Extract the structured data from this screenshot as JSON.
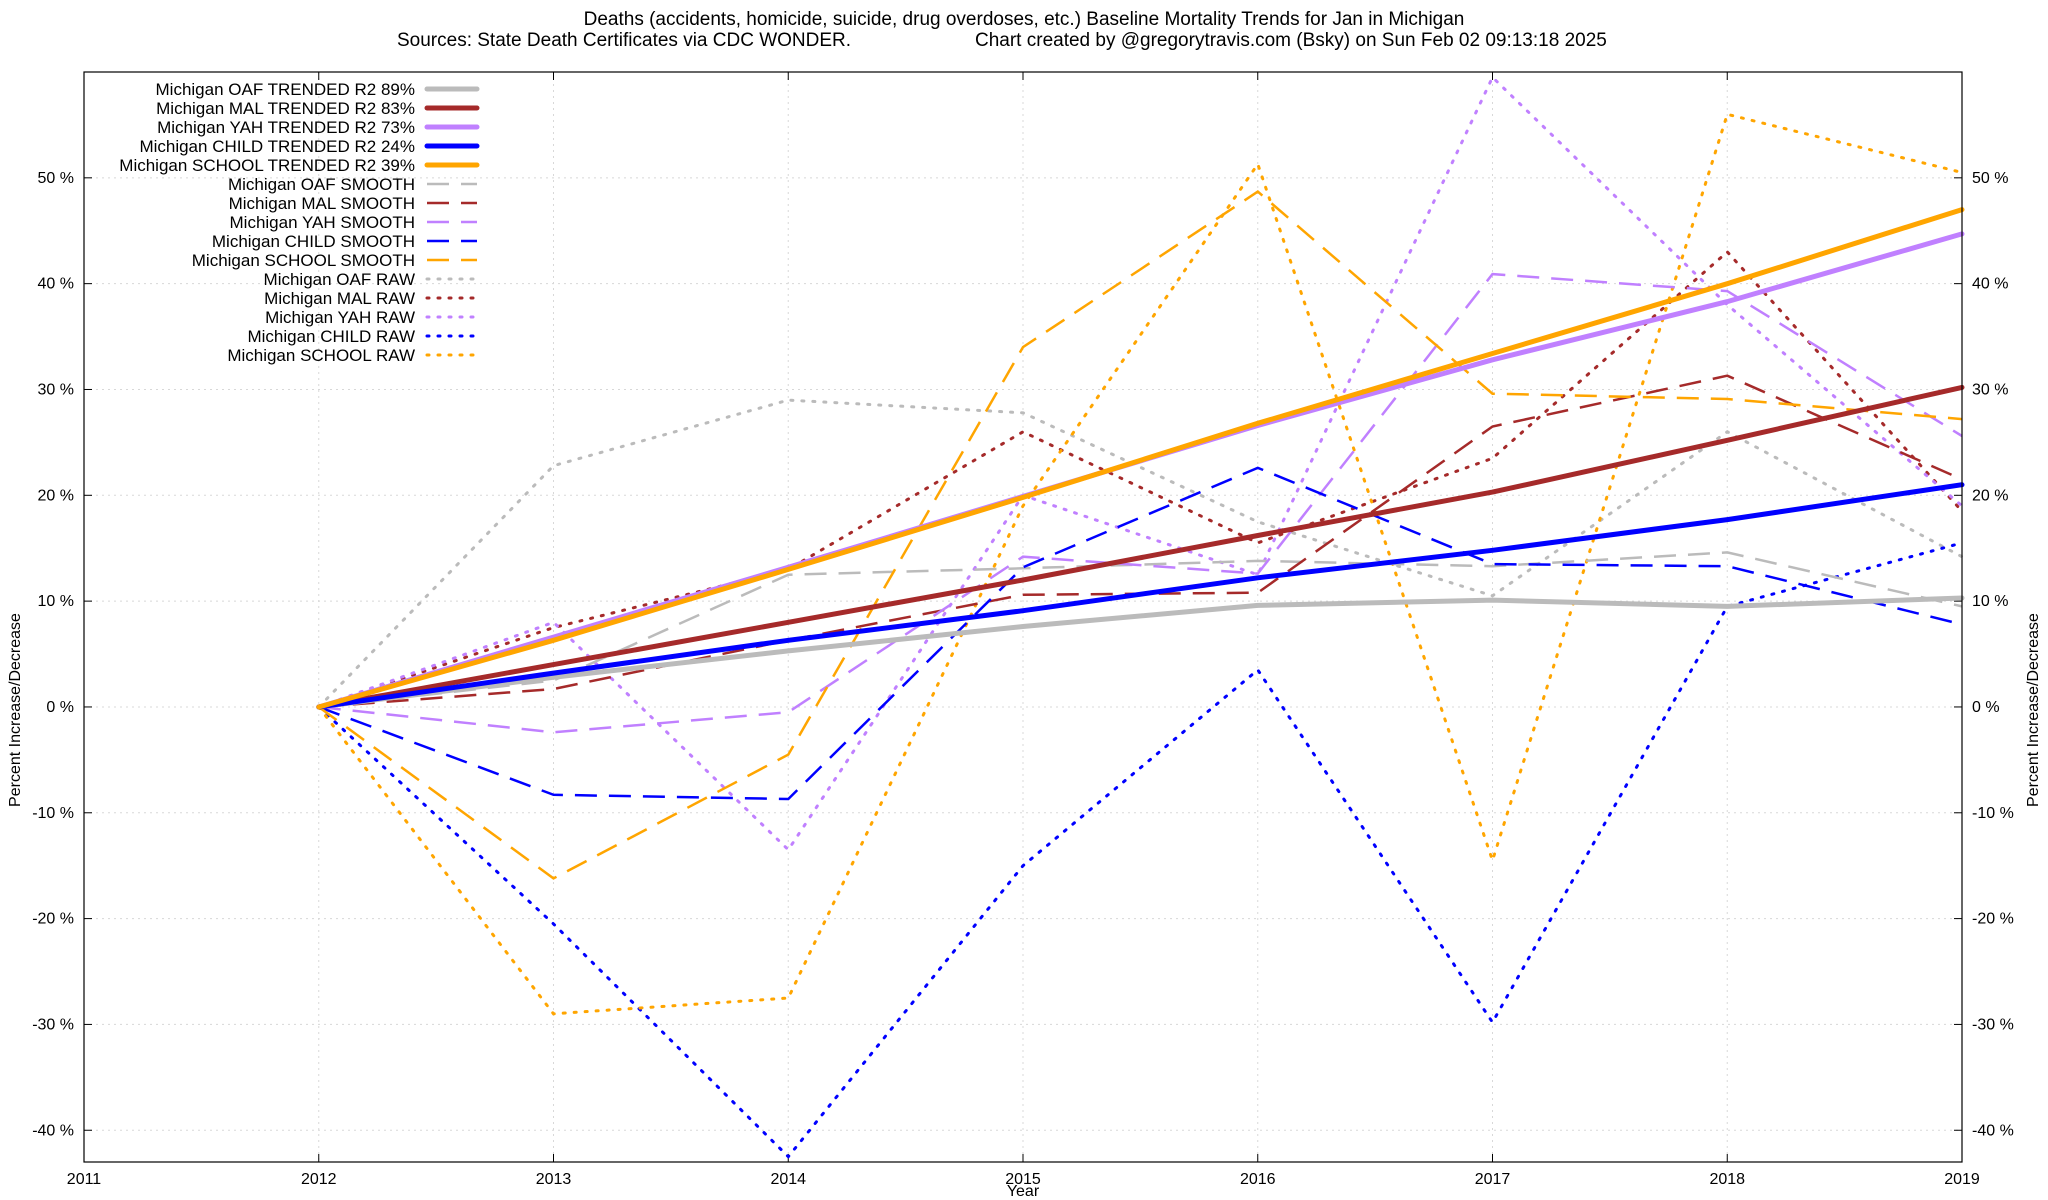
{
  "title_line1": "Deaths (accidents, homicide, suicide, drug overdoses, etc.)  Baseline Mortality Trends for Jan in Michigan",
  "title_line2_left": "Sources: State Death Certificates via CDC WONDER.",
  "title_line2_right": "Chart created by @gregorytravis.com (Bsky) on Sun Feb 02 09:13:18 2025",
  "chart_data": {
    "type": "line",
    "title": "Deaths (accidents, homicide, suicide, drug overdoses, etc.)  Baseline Mortality Trends for Jan in Michigan",
    "subtitle": "Sources: State Death Certificates via CDC WONDER.  Chart created by @gregorytravis.com (Bsky) on Sun Feb 02 09:13:18 2025",
    "xlabel": "Year",
    "ylabel": "Percent Increase/Decrease",
    "y2label": "Percent Increase/Decrease",
    "xlim": [
      2011,
      2019
    ],
    "ylim": [
      -43,
      60
    ],
    "x_ticks": [
      "2011",
      "2012",
      "2013",
      "2014",
      "2015",
      "2016",
      "2017",
      "2018",
      "2019"
    ],
    "y_ticks": [
      "-40 %",
      "-30 %",
      "-20 %",
      "-10 %",
      "0 %",
      "10 %",
      "20 %",
      "30 %",
      "40 %",
      "50 %"
    ],
    "y_tick_values": [
      -40,
      -30,
      -20,
      -10,
      0,
      10,
      20,
      30,
      40,
      50
    ],
    "grid": true,
    "legend_position": "top-left",
    "x": [
      2012,
      2013,
      2014,
      2015,
      2016,
      2017,
      2018,
      2019
    ],
    "series": [
      {
        "name": "Michigan OAF TRENDED R2  89%",
        "style": "solid",
        "color": "#bbbbbb",
        "values": [
          0,
          2.8,
          5.3,
          7.6,
          9.6,
          10.1,
          9.5,
          10.3
        ]
      },
      {
        "name": "Michigan MAL TRENDED R2  83%",
        "style": "solid",
        "color": "#a52a2a",
        "values": [
          0,
          4.0,
          8.0,
          12.0,
          16.2,
          20.3,
          25.2,
          30.2
        ]
      },
      {
        "name": "Michigan YAH TRENDED R2  73%",
        "style": "solid",
        "color": "#c080ff",
        "values": [
          0,
          6.6,
          13.2,
          19.9,
          26.6,
          32.8,
          38.3,
          44.7
        ]
      },
      {
        "name": "Michigan CHILD TRENDED R2  24%",
        "style": "solid",
        "color": "#0000ff",
        "values": [
          0,
          3.2,
          6.3,
          9.1,
          12.2,
          14.8,
          17.7,
          21.0
        ]
      },
      {
        "name": "Michigan SCHOOL TRENDED R2  39%",
        "style": "solid",
        "color": "#ffa500",
        "values": [
          0,
          6.3,
          13.0,
          19.8,
          26.8,
          33.4,
          40.0,
          47.0
        ]
      },
      {
        "name": "Michigan OAF SMOOTH",
        "style": "dashed",
        "color": "#bbbbbb",
        "values": [
          0,
          2.5,
          12.5,
          13.1,
          13.8,
          13.3,
          14.6,
          9.5
        ]
      },
      {
        "name": "Michigan MAL SMOOTH",
        "style": "dashed",
        "color": "#a52a2a",
        "values": [
          0,
          1.7,
          6.3,
          10.6,
          10.8,
          26.5,
          31.3,
          21.5
        ]
      },
      {
        "name": "Michigan YAH SMOOTH",
        "style": "dashed",
        "color": "#c080ff",
        "values": [
          0,
          -2.4,
          -0.5,
          14.2,
          12.6,
          40.9,
          39.3,
          25.6
        ]
      },
      {
        "name": "Michigan CHILD SMOOTH",
        "style": "dashed",
        "color": "#0000ff",
        "values": [
          0,
          -8.3,
          -8.7,
          13.2,
          22.6,
          13.5,
          13.3,
          7.8
        ]
      },
      {
        "name": "Michigan SCHOOL SMOOTH",
        "style": "dashed",
        "color": "#ffa500",
        "values": [
          0,
          -16.2,
          -4.5,
          34.0,
          48.7,
          29.6,
          29.1,
          27.2
        ]
      },
      {
        "name": "Michigan OAF RAW",
        "style": "dotted",
        "color": "#bbbbbb",
        "values": [
          0,
          22.8,
          29.0,
          27.8,
          17.5,
          10.5,
          26.0,
          14.2
        ]
      },
      {
        "name": "Michigan MAL RAW",
        "style": "dotted",
        "color": "#a52a2a",
        "values": [
          0,
          7.5,
          13.0,
          26.0,
          15.5,
          23.5,
          43.0,
          18.5
        ]
      },
      {
        "name": "Michigan YAH RAW",
        "style": "dotted",
        "color": "#c080ff",
        "values": [
          0,
          8.0,
          -13.5,
          20.0,
          12.5,
          59.5,
          38.0,
          19.0
        ]
      },
      {
        "name": "Michigan CHILD RAW",
        "style": "dotted",
        "color": "#0000ff",
        "values": [
          0,
          -20.5,
          -42.5,
          -15.0,
          3.5,
          -29.8,
          9.5,
          15.5
        ]
      },
      {
        "name": "Michigan SCHOOL RAW",
        "style": "dotted",
        "color": "#ffa500",
        "values": [
          0,
          -29.0,
          -27.5,
          19.0,
          51.3,
          -14.5,
          56.0,
          50.5
        ]
      }
    ]
  }
}
